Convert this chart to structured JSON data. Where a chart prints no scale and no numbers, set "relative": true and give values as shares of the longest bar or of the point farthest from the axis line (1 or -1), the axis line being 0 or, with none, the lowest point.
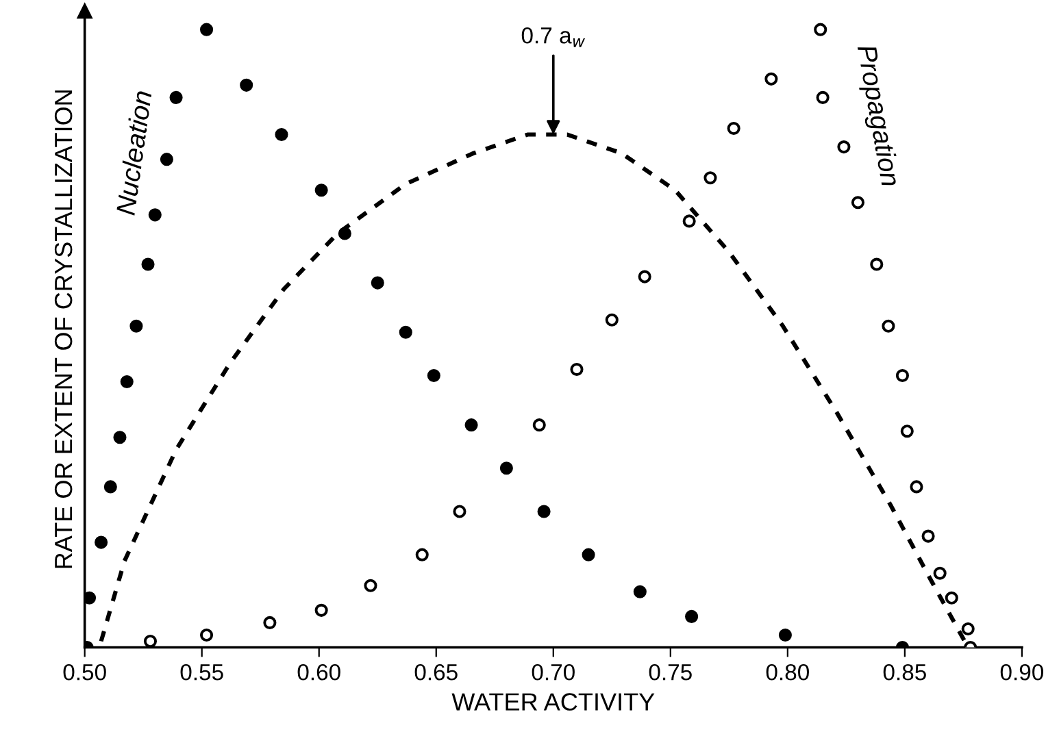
{
  "chart_data": {
    "type": "scatter",
    "relative": true,
    "xlabel": "WATER ACTIVITY",
    "ylabel": "RATE OR EXTENT OF CRYSTALLIZATION",
    "xlim": [
      0.5,
      0.9
    ],
    "xticks": [
      {
        "value": 0.5,
        "label": "0.50"
      },
      {
        "value": 0.55,
        "label": "0.55"
      },
      {
        "value": 0.6,
        "label": "0.60"
      },
      {
        "value": 0.65,
        "label": "0.65"
      },
      {
        "value": 0.7,
        "label": "0.70"
      },
      {
        "value": 0.75,
        "label": "0.75"
      },
      {
        "value": 0.8,
        "label": "0.80"
      },
      {
        "value": 0.85,
        "label": "0.85"
      },
      {
        "value": 0.9,
        "label": "0.90"
      }
    ],
    "grid": false,
    "legend": false,
    "annotations": [
      {
        "text": "0.7 a$_{w}$",
        "x": 0.7,
        "y": 0.83
      }
    ],
    "series": [
      {
        "name": "Nucleation",
        "marker": "circle",
        "color": "#000000",
        "x": [
          0.501,
          0.502,
          0.507,
          0.511,
          0.515,
          0.518,
          0.522,
          0.527,
          0.53,
          0.535,
          0.539,
          0.552,
          0.569,
          0.584,
          0.601,
          0.611,
          0.625,
          0.637,
          0.649,
          0.665,
          0.68,
          0.696,
          0.715,
          0.737,
          0.759,
          0.799,
          0.849
        ],
        "values": [
          0.0,
          0.08,
          0.17,
          0.26,
          0.34,
          0.43,
          0.52,
          0.62,
          0.7,
          0.79,
          0.89,
          1.0,
          0.91,
          0.83,
          0.74,
          0.67,
          0.59,
          0.51,
          0.44,
          0.36,
          0.29,
          0.22,
          0.15,
          0.09,
          0.05,
          0.02,
          0.0
        ]
      },
      {
        "name": "Propagation",
        "marker": "circle",
        "color": "#000000",
        "x": [
          0.528,
          0.552,
          0.579,
          0.601,
          0.622,
          0.644,
          0.66,
          0.694,
          0.71,
          0.725,
          0.739,
          0.758,
          0.767,
          0.777,
          0.793,
          0.814,
          0.815,
          0.824,
          0.83,
          0.838,
          0.843,
          0.849,
          0.851,
          0.855,
          0.86,
          0.865,
          0.87,
          0.877,
          0.878
        ],
        "values": [
          0.01,
          0.02,
          0.04,
          0.06,
          0.1,
          0.15,
          0.22,
          0.36,
          0.45,
          0.53,
          0.6,
          0.69,
          0.76,
          0.84,
          0.92,
          1.0,
          0.89,
          0.81,
          0.72,
          0.62,
          0.52,
          0.44,
          0.35,
          0.26,
          0.18,
          0.12,
          0.08,
          0.03,
          0.0
        ]
      },
      {
        "type": "line",
        "line_style": "dashed",
        "color": "#000000",
        "x": [
          0.507,
          0.517,
          0.539,
          0.562,
          0.585,
          0.608,
          0.637,
          0.666,
          0.689,
          0.706,
          0.729,
          0.752,
          0.775,
          0.798,
          0.821,
          0.844,
          0.861,
          0.877
        ],
        "values": [
          0.01,
          0.14,
          0.32,
          0.46,
          0.58,
          0.67,
          0.75,
          0.8,
          0.83,
          0.83,
          0.8,
          0.74,
          0.64,
          0.52,
          0.38,
          0.23,
          0.11,
          0.0
        ]
      }
    ]
  }
}
